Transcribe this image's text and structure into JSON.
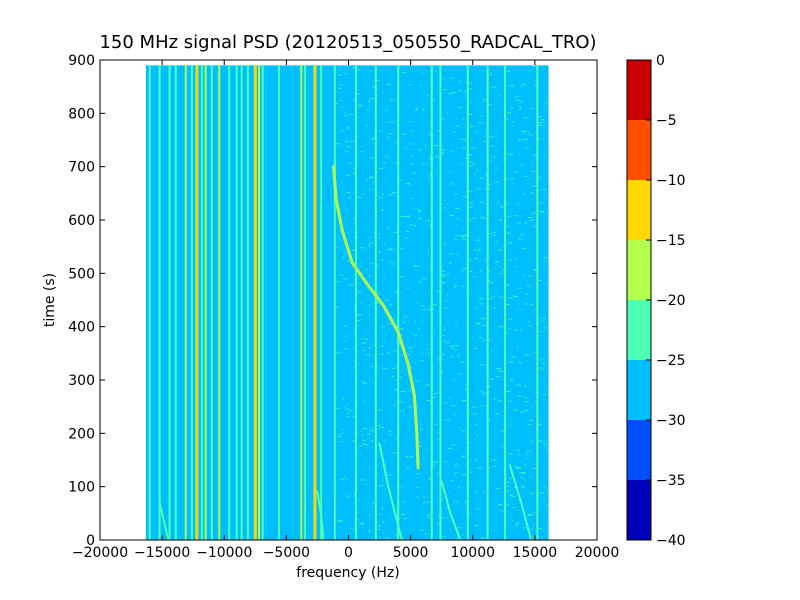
{
  "chart_data": {
    "type": "heatmap",
    "title": "150 MHz signal PSD (20120513_050550_RADCAL_TRO)",
    "xlabel": "frequency (Hz)",
    "ylabel": "time (s)",
    "xlim": [
      -20000,
      20000
    ],
    "ylim": [
      0,
      900
    ],
    "x_ticks": [
      -20000,
      -15000,
      -10000,
      -5000,
      0,
      5000,
      10000,
      15000,
      20000
    ],
    "x_tick_labels": [
      "−20000",
      "−15000",
      "−10000",
      "−5000",
      "0",
      "5000",
      "10000",
      "15000",
      "20000"
    ],
    "y_ticks": [
      0,
      100,
      200,
      300,
      400,
      500,
      600,
      700,
      800,
      900
    ],
    "y_tick_labels": [
      "0",
      "100",
      "200",
      "300",
      "400",
      "500",
      "600",
      "700",
      "800",
      "900"
    ],
    "data_extent": {
      "x": [
        -16300,
        16100
      ],
      "y": [
        0,
        890
      ]
    },
    "colorbar": {
      "levels": [
        -40,
        -35,
        -30,
        -25,
        -20,
        -15,
        -10,
        -5,
        0
      ],
      "tick_labels": [
        "−40",
        "−35",
        "−30",
        "−25",
        "−20",
        "−15",
        "−10",
        "−5",
        "0"
      ],
      "colors": [
        "#0000b8",
        "#0050ff",
        "#00bfff",
        "#4dffb2",
        "#b2ff4d",
        "#ffd700",
        "#ff5000",
        "#c80000"
      ]
    },
    "background_psd": -27.5,
    "vertical_lines": [
      {
        "f": -16000,
        "psd": -22
      },
      {
        "f": -15200,
        "psd": -22
      },
      {
        "f": -14400,
        "psd": -22
      },
      {
        "f": -13900,
        "psd": -22
      },
      {
        "f": -13100,
        "psd": -18
      },
      {
        "f": -12600,
        "psd": -22
      },
      {
        "f": -12200,
        "psd": -13
      },
      {
        "f": -11800,
        "psd": -22
      },
      {
        "f": -11500,
        "psd": -18
      },
      {
        "f": -11000,
        "psd": -22
      },
      {
        "f": -10400,
        "psd": -18
      },
      {
        "f": -9600,
        "psd": -22
      },
      {
        "f": -9000,
        "psd": -22
      },
      {
        "f": -8600,
        "psd": -22
      },
      {
        "f": -8100,
        "psd": -22
      },
      {
        "f": -7500,
        "psd": -13
      },
      {
        "f": -7200,
        "psd": -18
      },
      {
        "f": -6900,
        "psd": -22
      },
      {
        "f": -5600,
        "psd": -22
      },
      {
        "f": -3800,
        "psd": -18
      },
      {
        "f": -3500,
        "psd": -22
      },
      {
        "f": -2700,
        "psd": -13
      },
      {
        "f": -2200,
        "psd": -22
      },
      {
        "f": -1100,
        "psd": -22
      },
      {
        "f": 600,
        "psd": -22
      },
      {
        "f": 2200,
        "psd": -22
      },
      {
        "f": 4000,
        "psd": -22
      },
      {
        "f": 6700,
        "psd": -22
      },
      {
        "f": 7400,
        "psd": -22
      },
      {
        "f": 9600,
        "psd": -22
      },
      {
        "f": 11200,
        "psd": -22
      },
      {
        "f": 12600,
        "psd": -22
      },
      {
        "f": 15200,
        "psd": -22
      }
    ],
    "drifting_signal": {
      "psd": -18,
      "points": [
        {
          "f": -1200,
          "t": 700
        },
        {
          "f": -1000,
          "t": 640
        },
        {
          "f": -500,
          "t": 580
        },
        {
          "f": 300,
          "t": 520
        },
        {
          "f": 1500,
          "t": 480
        },
        {
          "f": 2800,
          "t": 440
        },
        {
          "f": 4000,
          "t": 390
        },
        {
          "f": 4800,
          "t": 330
        },
        {
          "f": 5300,
          "t": 270
        },
        {
          "f": 5500,
          "t": 200
        },
        {
          "f": 5600,
          "t": 135
        }
      ]
    },
    "faint_drifts": [
      {
        "psd": -22,
        "points": [
          {
            "f": -2500,
            "t": 90
          },
          {
            "f": -2200,
            "t": 45
          },
          {
            "f": -2000,
            "t": 0
          }
        ]
      },
      {
        "psd": -22,
        "points": [
          {
            "f": 2500,
            "t": 180
          },
          {
            "f": 3200,
            "t": 100
          },
          {
            "f": 4300,
            "t": 0
          }
        ]
      },
      {
        "psd": -22,
        "points": [
          {
            "f": 7500,
            "t": 110
          },
          {
            "f": 8200,
            "t": 50
          },
          {
            "f": 9000,
            "t": 0
          }
        ]
      },
      {
        "psd": -22,
        "points": [
          {
            "f": 13000,
            "t": 140
          },
          {
            "f": 13900,
            "t": 70
          },
          {
            "f": 14700,
            "t": 0
          }
        ]
      },
      {
        "psd": -22,
        "points": [
          {
            "f": -15200,
            "t": 70
          },
          {
            "f": -14800,
            "t": 30
          },
          {
            "f": -14500,
            "t": 0
          }
        ]
      }
    ]
  }
}
